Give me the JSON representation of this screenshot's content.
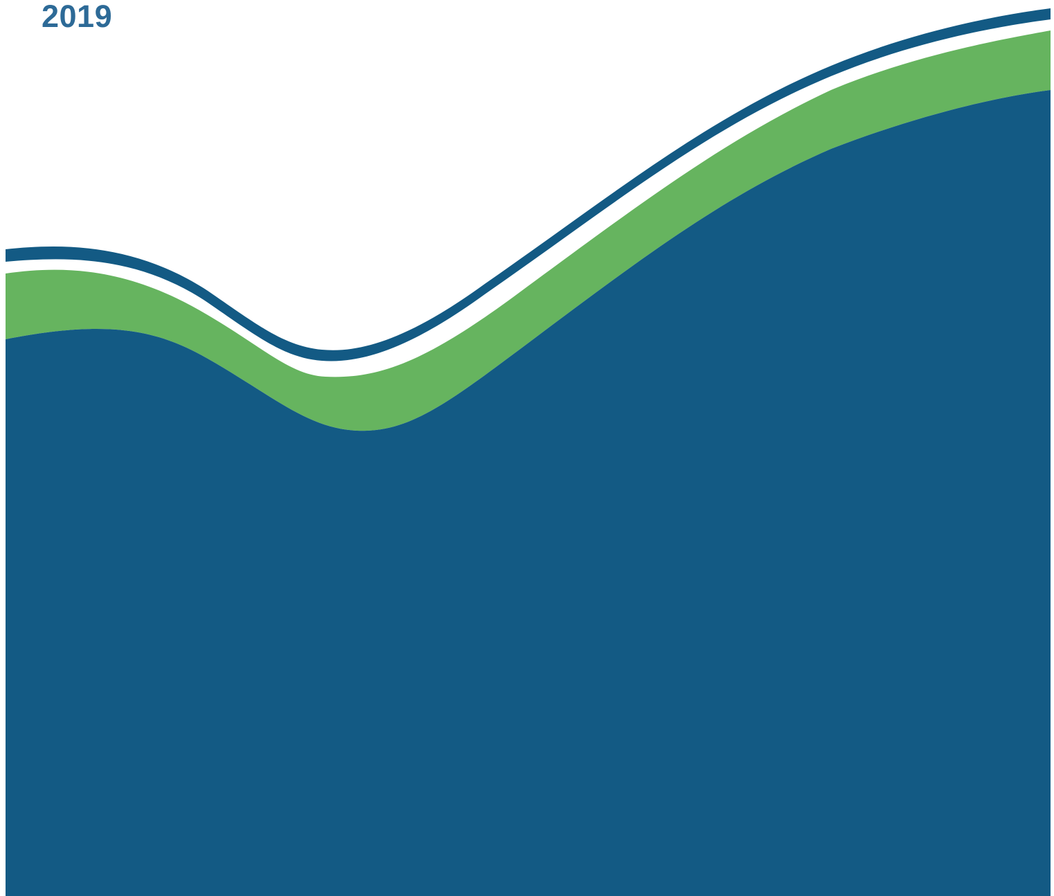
{
  "cover": {
    "year": "2019"
  },
  "colors": {
    "navy": "#135a84",
    "green": "#66b45f",
    "year_text": "#2d6a97",
    "background": "#ffffff"
  }
}
